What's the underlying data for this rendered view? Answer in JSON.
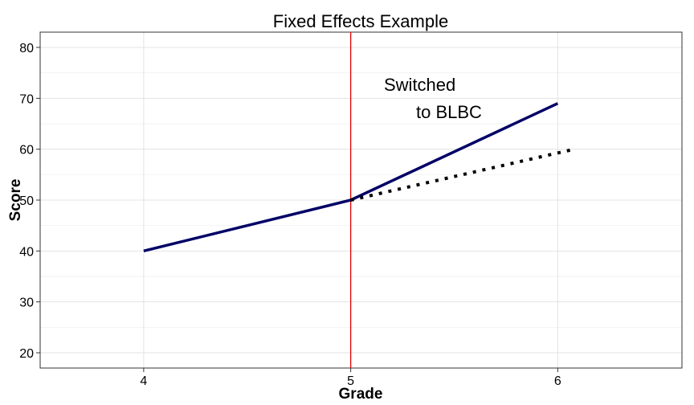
{
  "chart_data": {
    "type": "line",
    "title": "Fixed Effects Example",
    "xlabel": "Grade",
    "ylabel": "Score",
    "xlim": [
      3.5,
      6.6
    ],
    "ylim": [
      17,
      83
    ],
    "x_ticks": [
      4,
      5,
      6
    ],
    "y_ticks": [
      20,
      30,
      40,
      50,
      60,
      70,
      80
    ],
    "grid": true,
    "legend": "none",
    "series": [
      {
        "style": "solid",
        "color": "#000066",
        "x": [
          4,
          5,
          6
        ],
        "y": [
          40,
          50,
          69
        ]
      },
      {
        "style": "dotted",
        "color": "#000000",
        "x": [
          5,
          6.08
        ],
        "y": [
          50,
          60
        ]
      }
    ],
    "vline": {
      "x": 5,
      "color": "#e00000"
    },
    "annotation": {
      "lines": [
        "Switched",
        "to BLBC"
      ],
      "x": 5.3,
      "y": 72
    }
  }
}
